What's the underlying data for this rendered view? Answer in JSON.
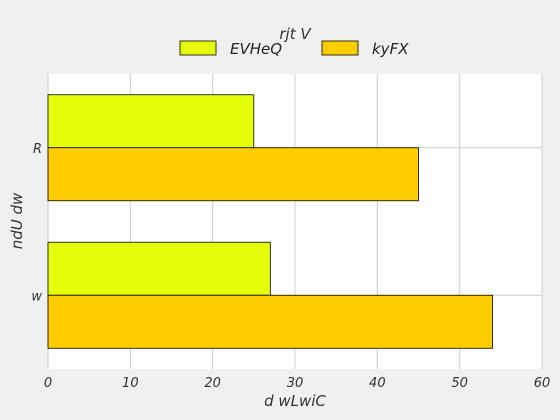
{
  "chart_data": {
    "type": "bar",
    "orientation": "horizontal",
    "categories": [
      "R",
      "w"
    ],
    "series": [
      {
        "name": "EVHeQ",
        "values": [
          25,
          27
        ],
        "color": "#e5ff0a"
      },
      {
        "name": "kyFX",
        "values": [
          45,
          54
        ],
        "color": "#ffcc00"
      }
    ],
    "legend_title": "rjt V",
    "legend_position": "top-center",
    "xlabel": "d wLwiC",
    "ylabel": "ndU dw",
    "xlim": [
      0,
      60
    ],
    "xticks": [
      0,
      10,
      20,
      30,
      40,
      50,
      60
    ],
    "grid": true,
    "background": "#f0f0f0",
    "plot_background": "#ffffff"
  }
}
